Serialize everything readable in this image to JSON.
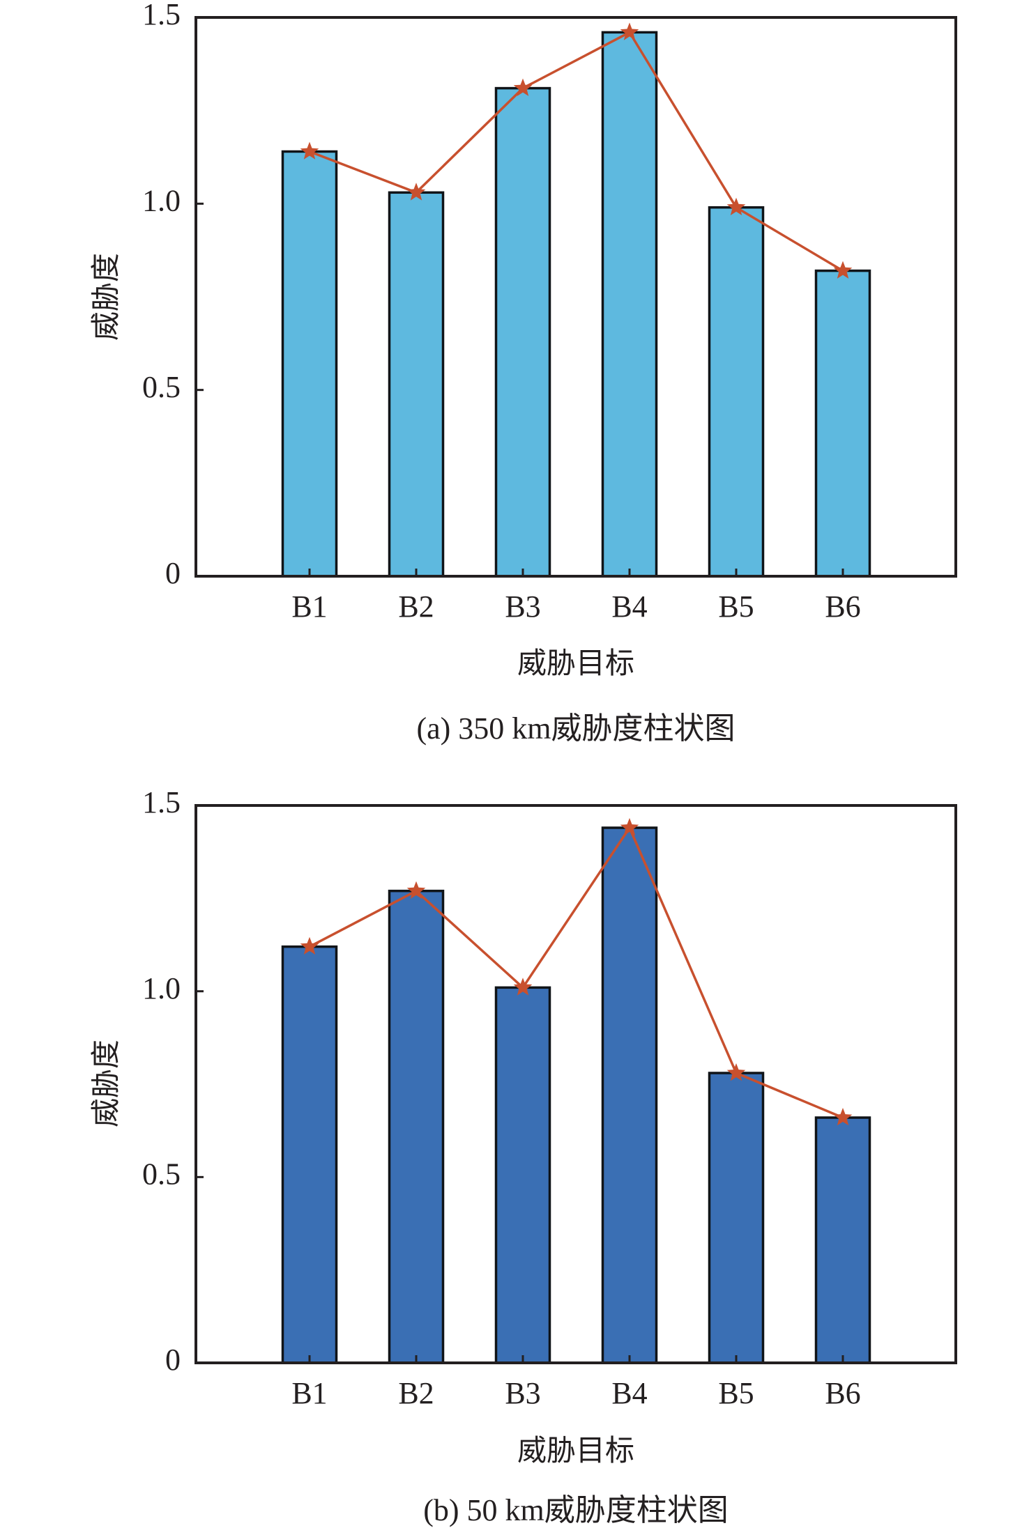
{
  "chart_data": [
    {
      "type": "bar",
      "id": "a",
      "caption": "(a) 350 km威胁度柱状图",
      "categories": [
        "B1",
        "B2",
        "B3",
        "B4",
        "B5",
        "B6"
      ],
      "series": [
        {
          "name": "威胁度 (bar)",
          "kind": "bar",
          "color": "#5eb9df",
          "values": [
            1.14,
            1.03,
            1.31,
            1.46,
            0.99,
            0.82
          ]
        },
        {
          "name": "威胁度 (line)",
          "kind": "line",
          "marker": "star",
          "color": "#c8502e",
          "values": [
            1.14,
            1.03,
            1.31,
            1.46,
            0.99,
            0.82
          ]
        }
      ],
      "xlabel": "威胁目标",
      "ylabel": "威胁度",
      "ylim": [
        0,
        1.5
      ],
      "yticks": [
        0,
        0.5,
        1.0,
        1.5
      ],
      "ytick_labels": [
        "0",
        "0.5",
        "1.0",
        "1.5"
      ],
      "grid": false,
      "legend": "none"
    },
    {
      "type": "bar",
      "id": "b",
      "caption": "(b) 50 km威胁度柱状图",
      "categories": [
        "B1",
        "B2",
        "B3",
        "B4",
        "B5",
        "B6"
      ],
      "series": [
        {
          "name": "威胁度 (bar)",
          "kind": "bar",
          "color": "#3a6fb4",
          "values": [
            1.12,
            1.27,
            1.01,
            1.44,
            0.78,
            0.66
          ]
        },
        {
          "name": "威胁度 (line)",
          "kind": "line",
          "marker": "star",
          "color": "#c8502e",
          "values": [
            1.12,
            1.27,
            1.01,
            1.44,
            0.78,
            0.66
          ]
        }
      ],
      "xlabel": "威胁目标",
      "ylabel": "威胁度",
      "ylim": [
        0,
        1.5
      ],
      "yticks": [
        0,
        0.5,
        1.0,
        1.5
      ],
      "ytick_labels": [
        "0",
        "0.5",
        "1.0",
        "1.5"
      ],
      "grid": false,
      "legend": "none"
    }
  ]
}
